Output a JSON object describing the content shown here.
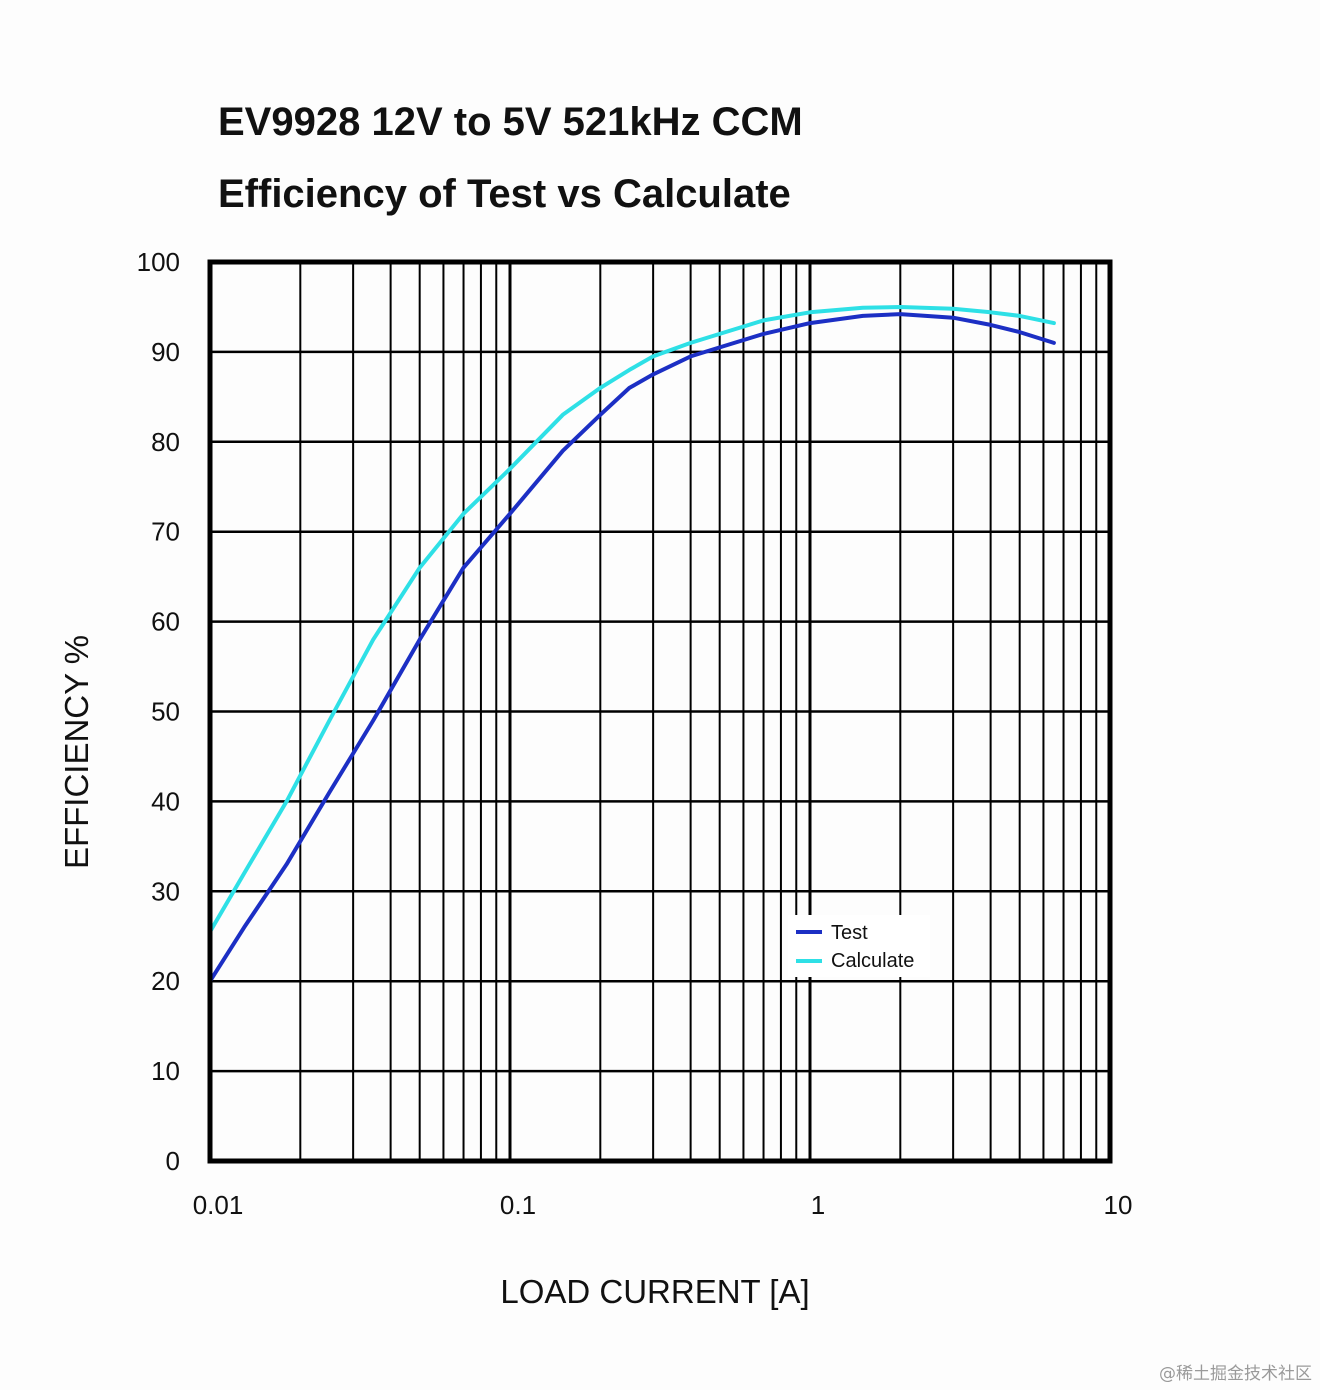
{
  "chart_data": {
    "type": "line",
    "title": "EV9928 12V to 5V 521kHz CCM",
    "subtitle": "Efficiency of Test vs Calculate",
    "xlabel": "LOAD CURRENT [A]",
    "ylabel": "EFFICIENCY %",
    "xscale": "log",
    "xlim": [
      0.01,
      10
    ],
    "ylim": [
      0,
      100
    ],
    "grid": true,
    "x_ticks": [
      "0.01",
      "0.1",
      "1",
      "10"
    ],
    "y_ticks": [
      "0",
      "10",
      "20",
      "30",
      "40",
      "50",
      "60",
      "70",
      "80",
      "90",
      "100"
    ],
    "legend_position": "center-right",
    "series": [
      {
        "name": "Test",
        "color": "#1c2fc4",
        "x": [
          0.01,
          0.013,
          0.018,
          0.025,
          0.035,
          0.05,
          0.07,
          0.1,
          0.15,
          0.2,
          0.25,
          0.3,
          0.4,
          0.5,
          0.7,
          1.0,
          1.5,
          2.0,
          3.0,
          4.0,
          5.0,
          6.5
        ],
        "y": [
          20,
          26,
          33,
          41,
          49,
          58,
          66,
          72,
          79,
          83,
          86,
          87.5,
          89.5,
          90.5,
          92,
          93.2,
          94.0,
          94.2,
          93.8,
          93.0,
          92.2,
          91.0
        ]
      },
      {
        "name": "Calculate",
        "color": "#2ee0e6",
        "x": [
          0.01,
          0.013,
          0.018,
          0.025,
          0.035,
          0.05,
          0.07,
          0.1,
          0.15,
          0.2,
          0.25,
          0.3,
          0.4,
          0.5,
          0.7,
          1.0,
          1.5,
          2.0,
          3.0,
          4.0,
          5.0,
          6.5
        ],
        "y": [
          25.5,
          32,
          40,
          49,
          58,
          66,
          72,
          77,
          83,
          86,
          88,
          89.5,
          91,
          92,
          93.5,
          94.4,
          94.9,
          95.0,
          94.8,
          94.4,
          94.0,
          93.2
        ]
      }
    ]
  },
  "watermark": "@稀土掘金技术社区"
}
